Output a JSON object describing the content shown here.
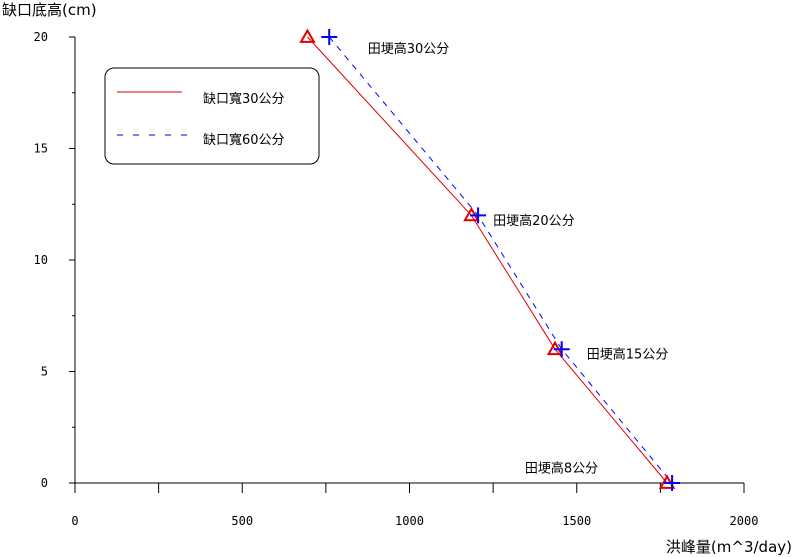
{
  "chart_data": {
    "type": "line",
    "ylabel": "缺口底高(cm)",
    "xlabel": "洪峰量(m^3/day)",
    "xlim": [
      0,
      2000
    ],
    "ylim": [
      0,
      20
    ],
    "xticks": [
      0,
      500,
      1000,
      1500,
      2000
    ],
    "yticks": [
      0,
      5,
      10,
      15,
      20
    ],
    "grid": false,
    "legend_position": "top-left",
    "series": [
      {
        "name": "缺口寬30公分",
        "color": "#e00000",
        "line_style": "solid",
        "marker": "triangle",
        "points": [
          {
            "x": 695,
            "y": 20
          },
          {
            "x": 1185,
            "y": 12
          },
          {
            "x": 1435,
            "y": 6
          },
          {
            "x": 1770,
            "y": 0
          }
        ]
      },
      {
        "name": "缺口寬60公分",
        "color": "#0000ff",
        "line_style": "dashed",
        "marker": "plus",
        "points": [
          {
            "x": 760,
            "y": 20
          },
          {
            "x": 1205,
            "y": 12
          },
          {
            "x": 1455,
            "y": 6
          },
          {
            "x": 1785,
            "y": 0
          }
        ]
      }
    ],
    "annotations": [
      {
        "text": "田埂高30公分",
        "x": 875,
        "y": 19.5
      },
      {
        "text": "田埂高20公分",
        "x": 1250,
        "y": 11.8
      },
      {
        "text": "田埂高15公分",
        "x": 1530,
        "y": 5.8
      },
      {
        "text": "田埂高8公分",
        "x": 1345,
        "y": 0.7
      }
    ]
  }
}
